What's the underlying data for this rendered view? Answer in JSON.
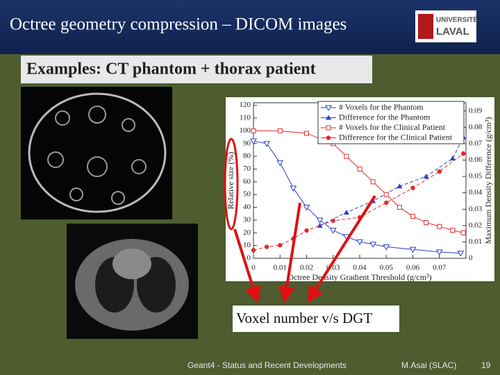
{
  "header": {
    "title": "Octree geometry compression – DICOM images",
    "logo": [
      "UNIVERSITÉ",
      "LAVAL"
    ]
  },
  "subtitle": "Examples: CT phantom + thorax patient",
  "callout": "Voxel number v/s DGT",
  "footer": {
    "talk": "Geant4 - Status and Recent Developments",
    "author": "M.Asai (SLAC)",
    "page": "19"
  },
  "chart_data": {
    "type": "line",
    "xlabel": "Octree Density Gradient Threshold (g/cm³)",
    "ylabel": "Relative size (%)",
    "y2label": "Maximum Density Difference (g/cm³)",
    "xlim": [
      0,
      0.08
    ],
    "xticks": [
      0,
      0.01,
      0.02,
      0.03,
      0.04,
      0.05,
      0.06,
      0.07
    ],
    "ylim": [
      0,
      122
    ],
    "yticks": [
      0,
      10,
      20,
      30,
      40,
      50,
      60,
      70,
      80,
      90,
      100,
      110,
      120
    ],
    "y2lim": [
      0,
      0.095
    ],
    "y2ticks": [
      0,
      0.01,
      0.02,
      0.03,
      0.04,
      0.05,
      0.06,
      0.07,
      0.08,
      0.09
    ],
    "series": [
      {
        "name": "# Voxels for the Phantom",
        "color": "#2a3fc4",
        "marker": "tri-down-open",
        "axis": "y",
        "x": [
          0,
          0.005,
          0.01,
          0.015,
          0.02,
          0.025,
          0.03,
          0.035,
          0.04,
          0.045,
          0.05,
          0.06,
          0.07,
          0.078
        ],
        "values": [
          92,
          90,
          75,
          55,
          40,
          30,
          22,
          17,
          13,
          11,
          9,
          7,
          5,
          4
        ]
      },
      {
        "name": "Difference for the Phantom",
        "color": "#2a3fc4",
        "marker": "tri-up-fill",
        "axis": "y2",
        "x": [
          0.025,
          0.035,
          0.045,
          0.055,
          0.065,
          0.075,
          0.079
        ],
        "values": [
          0.02,
          0.028,
          0.035,
          0.044,
          0.05,
          0.061,
          0.074
        ]
      },
      {
        "name": "# Voxels for the Clinical Patient",
        "color": "#e02a2a",
        "marker": "square-open",
        "axis": "y",
        "x": [
          0,
          0.01,
          0.02,
          0.03,
          0.035,
          0.04,
          0.045,
          0.05,
          0.055,
          0.06,
          0.065,
          0.07,
          0.075,
          0.079
        ],
        "values": [
          100,
          100,
          98,
          90,
          80,
          70,
          60,
          50,
          40,
          33,
          28,
          25,
          22,
          20
        ]
      },
      {
        "name": "Difference for the Clinical Patient",
        "color": "#e02a2a",
        "marker": "circle-fill",
        "axis": "y2",
        "x": [
          0,
          0.005,
          0.01,
          0.015,
          0.02,
          0.03,
          0.04,
          0.05,
          0.06,
          0.07,
          0.079
        ],
        "values": [
          0.005,
          0.007,
          0.008,
          0.012,
          0.017,
          0.023,
          0.025,
          0.034,
          0.043,
          0.053,
          0.064
        ]
      }
    ]
  }
}
